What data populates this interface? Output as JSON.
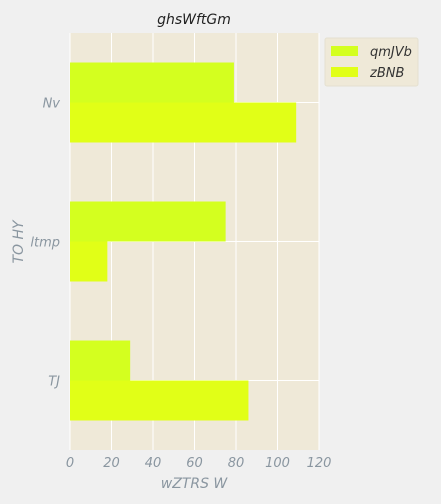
{
  "chart_data": {
    "type": "bar",
    "orientation": "horizontal",
    "title": "ghsWftGm",
    "xlabel": "wZTRS W",
    "ylabel": "TO HY",
    "categories": [
      "Nv",
      "ltmp",
      "TJ"
    ],
    "series": [
      {
        "name": "qmJVb",
        "values": [
          79,
          75,
          29
        ],
        "color": "#d4ff1f"
      },
      {
        "name": "zBNB",
        "values": [
          109,
          18,
          86
        ],
        "color": "#e1ff17"
      }
    ],
    "xlim": [
      0,
      120
    ],
    "xticks": [
      0,
      20,
      40,
      60,
      80,
      100,
      120
    ],
    "grid": true,
    "legend_position": "top-right",
    "colors": {
      "plot_bg": "#efe9d8",
      "page_bg": "#f0f0f0",
      "grid": "#ffffff",
      "text": "#8a96a0",
      "title": "#222222"
    }
  }
}
